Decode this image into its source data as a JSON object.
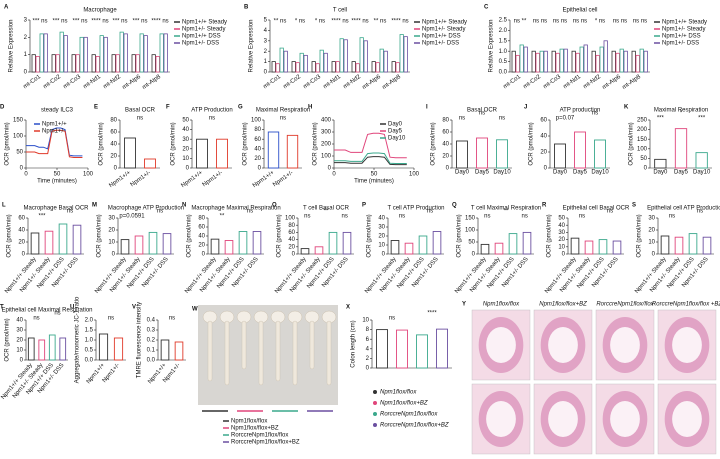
{
  "chart_data": [
    {
      "panel": "A",
      "type": "bar",
      "title": "Macrophage",
      "ylabel": "Relative Expression",
      "categories": [
        "mt-Co1",
        "mt-Co2",
        "mt-Co3",
        "mt-Nd1",
        "mt-Nd2",
        "mt-Atp6",
        "mt-Atp8"
      ],
      "series": [
        {
          "name": "Npm1+/+ Steady",
          "color": "#333333",
          "values": [
            1,
            1,
            1,
            1,
            1,
            1,
            1
          ]
        },
        {
          "name": "Npm1+/- Steady",
          "color": "#e0457b",
          "values": [
            0.9,
            1.0,
            1.0,
            0.9,
            1.0,
            1.0,
            0.9
          ]
        },
        {
          "name": "Npm1+/+ DSS",
          "color": "#3aa88c",
          "values": [
            2.2,
            2.3,
            2.0,
            2.1,
            2.3,
            2.2,
            2.2
          ]
        },
        {
          "name": "Npm1+/- DSS",
          "color": "#6b4fa0",
          "values": [
            2.2,
            2.1,
            2.0,
            2.0,
            2.2,
            2.1,
            2.2
          ]
        }
      ],
      "ylim": [
        0,
        3
      ],
      "yticks": [
        0,
        1,
        2,
        3
      ],
      "significance": [
        "*** ns",
        "*** ns",
        "*** ns",
        "**** ns",
        "*** ns",
        "*** ns",
        "**** ns"
      ]
    },
    {
      "panel": "B",
      "type": "bar",
      "title": "T cell",
      "ylabel": "Relative Expression",
      "categories": [
        "mt-Co1",
        "mt-Co2",
        "mt-Co3",
        "mt-Nd1",
        "mt-Nd2",
        "mt-Atp6",
        "mt-Atp8"
      ],
      "series": [
        {
          "name": "Npm1+/+ Steady",
          "color": "#333333",
          "values": [
            1,
            1,
            1,
            1,
            1,
            1,
            1
          ]
        },
        {
          "name": "Npm1+/- Steady",
          "color": "#e0457b",
          "values": [
            0.8,
            0.9,
            0.8,
            1.0,
            0.8,
            0.9,
            0.9
          ]
        },
        {
          "name": "Npm1+/+ DSS",
          "color": "#3aa88c",
          "values": [
            2.3,
            1.8,
            2.1,
            3.2,
            3.3,
            2.2,
            3.6
          ]
        },
        {
          "name": "Npm1+/- DSS",
          "color": "#6b4fa0",
          "values": [
            2.0,
            1.6,
            1.8,
            3.1,
            3.0,
            2.0,
            3.4
          ]
        }
      ],
      "ylim": [
        0,
        5
      ],
      "yticks": [
        0,
        1,
        2,
        3,
        4,
        5
      ],
      "significance": [
        "** ns",
        "* ns",
        "* ns",
        "**** ns",
        "**** ns",
        "** ns",
        "**** ns"
      ]
    },
    {
      "panel": "C",
      "type": "bar",
      "title": "Epithelial cell",
      "ylabel": "Relative Expression",
      "categories": [
        "mt-Co1",
        "mt-Co2",
        "mt-Co3",
        "mt-Nd1",
        "mt-Nd2",
        "mt-Atp6",
        "mt-Atp8"
      ],
      "series": [
        {
          "name": "Npm1+/+ Steady",
          "color": "#333333",
          "values": [
            1,
            1,
            1,
            1,
            1,
            1,
            1
          ]
        },
        {
          "name": "Npm1+/- Steady",
          "color": "#e0457b",
          "values": [
            0.8,
            0.9,
            0.9,
            0.9,
            0.8,
            0.9,
            0.8
          ]
        },
        {
          "name": "Npm1+/+ DSS",
          "color": "#3aa88c",
          "values": [
            1.3,
            1.0,
            1.1,
            1.2,
            1.2,
            1.1,
            1.1
          ]
        },
        {
          "name": "Npm1+/- DSS",
          "color": "#6b4fa0",
          "values": [
            1.2,
            1.0,
            1.1,
            1.3,
            1.5,
            1.0,
            1.0
          ]
        }
      ],
      "ylim": [
        0,
        2.5
      ],
      "yticks": [
        {
          "value": 0,
          "label": "0.0"
        },
        0.5,
        {
          "value": 1,
          "label": "1.0"
        },
        1.5,
        {
          "value": 2,
          "label": "2.0"
        },
        2.5
      ],
      "significance": [
        "ns **",
        "ns ns",
        "ns ns",
        "ns ns",
        "* ns",
        "ns ns",
        "ns ns"
      ]
    },
    {
      "panel": "D",
      "type": "line",
      "title": "steady ILC3",
      "ylabel": "OCR (pmol/min)",
      "xlabel": "Time (minutes)",
      "x": [
        0,
        7,
        14,
        21,
        28,
        35,
        42,
        49,
        56,
        63,
        70,
        77,
        84,
        91
      ],
      "series": [
        {
          "name": "Npm1+/+",
          "color": "#2b4fc9",
          "values": [
            70,
            70,
            70,
            65,
            65,
            60,
            120,
            125,
            125,
            120,
            40,
            38,
            38,
            38
          ]
        },
        {
          "name": "Npm1+/-",
          "color": "#e03a2a",
          "values": [
            50,
            50,
            50,
            45,
            45,
            45,
            115,
            118,
            118,
            115,
            35,
            33,
            33,
            33
          ]
        }
      ],
      "xlim": [
        0,
        100
      ],
      "xticks": [
        0,
        50,
        100
      ],
      "ylim": [
        0,
        150
      ],
      "yticks": [
        0,
        50,
        100,
        150
      ]
    },
    {
      "panel": "E",
      "type": "bar",
      "title": "Basal OCR",
      "ylabel": "OCR (pmol/min)",
      "categories": [
        "Npm1+/+",
        "Npm1+/-"
      ],
      "values": [
        50,
        15
      ],
      "colors": [
        "#333333",
        "#e03a2a"
      ],
      "ylim": [
        0,
        80
      ],
      "yticks": [
        0,
        20,
        40,
        60,
        80
      ],
      "significance": [
        "ns"
      ]
    },
    {
      "panel": "F",
      "type": "bar",
      "title": "ATP Production",
      "ylabel": "OCR (pmol/min)",
      "categories": [
        "Npm1+/+",
        "Npm1+/-"
      ],
      "values": [
        30,
        30
      ],
      "colors": [
        "#333333",
        "#e03a2a"
      ],
      "ylim": [
        0,
        50
      ],
      "yticks": [
        0,
        10,
        20,
        30,
        40,
        50
      ],
      "significance": [
        "ns"
      ]
    },
    {
      "panel": "G",
      "type": "bar",
      "title": "Maximal Respiration",
      "ylabel": "OCR (pmol/min)",
      "categories": [
        "Npm1+/+",
        "Npm1+/-"
      ],
      "values": [
        75,
        68
      ],
      "colors": [
        "#2b4fc9",
        "#e03a2a"
      ],
      "ylim": [
        0,
        100
      ],
      "yticks": [
        0,
        20,
        40,
        60,
        80,
        100
      ],
      "significance": [
        "ns"
      ]
    },
    {
      "panel": "H",
      "type": "line",
      "ylabel": "OCR (pmol/min)",
      "xlabel": "Time (minutes)",
      "x": [
        0,
        7,
        14,
        21,
        28,
        35,
        42,
        49,
        56,
        63,
        70,
        77,
        84,
        91
      ],
      "series": [
        {
          "name": "Day0",
          "color": "#333333",
          "values": [
            45,
            45,
            45,
            40,
            40,
            40,
            90,
            95,
            95,
            90,
            30,
            28,
            28,
            28
          ]
        },
        {
          "name": "Day5",
          "color": "#e0457b",
          "values": [
            150,
            150,
            150,
            130,
            130,
            130,
            280,
            290,
            290,
            280,
            90,
            85,
            85,
            85
          ]
        },
        {
          "name": "Day10",
          "color": "#3aa88c",
          "values": [
            60,
            60,
            60,
            55,
            55,
            55,
            120,
            125,
            125,
            120,
            40,
            38,
            38,
            38
          ]
        }
      ],
      "xlim": [
        0,
        100
      ],
      "xticks": [
        0,
        50,
        100
      ],
      "ylim": [
        0,
        400
      ],
      "yticks": [
        0,
        100,
        200,
        300,
        400
      ]
    },
    {
      "panel": "I",
      "type": "bar",
      "title": "Basal OCR",
      "ylabel": "OCR (pmol/min)",
      "categories": [
        "Day0",
        "Day5",
        "Day10"
      ],
      "values": [
        45,
        50,
        47
      ],
      "colors": [
        "#333333",
        "#e0457b",
        "#3aa88c"
      ],
      "ylim": [
        0,
        80
      ],
      "yticks": [
        0,
        20,
        40,
        60,
        80
      ],
      "significance": [
        "ns",
        "ns",
        "ns"
      ]
    },
    {
      "panel": "J",
      "type": "bar",
      "title": "ATP production",
      "ylabel": "OCR (pmol/min)",
      "categories": [
        "Day0",
        "Day5",
        "Day10"
      ],
      "values": [
        30,
        45,
        35
      ],
      "colors": [
        "#333333",
        "#e0457b",
        "#3aa88c"
      ],
      "ylim": [
        0,
        60
      ],
      "yticks": [
        0,
        20,
        40,
        60
      ],
      "significance": [
        "p=0.07",
        "ns"
      ]
    },
    {
      "panel": "K",
      "type": "bar",
      "title": "Maximal Respiration",
      "ylabel": "OCR (pmol/min)",
      "categories": [
        "Day0",
        "Day5",
        "Day10"
      ],
      "values": [
        45,
        205,
        80
      ],
      "colors": [
        "#333333",
        "#e0457b",
        "#3aa88c"
      ],
      "ylim": [
        0,
        250
      ],
      "yticks": [
        0,
        50,
        100,
        150,
        200,
        250
      ],
      "significance": [
        "***",
        "*",
        "***"
      ]
    },
    {
      "panel": "L",
      "type": "bar",
      "title": "Macrophage Basal OCR",
      "ylabel": "OCR (pmol/min)",
      "categories": [
        "Npm1+/+ Steady",
        "Npm1+/- Steady",
        "Npm1+/+ DSS",
        "Npm1+/- DSS"
      ],
      "values": [
        35,
        38,
        50,
        48
      ],
      "colors": [
        "#333333",
        "#e0457b",
        "#3aa88c",
        "#6b4fa0"
      ],
      "ylim": [
        0,
        60
      ],
      "yticks": [
        0,
        20,
        40,
        60
      ],
      "significance": [
        "***",
        "ns"
      ]
    },
    {
      "panel": "M",
      "type": "bar",
      "title": "Macrophage ATP Production",
      "ylabel": "OCR (pmol/min)",
      "categories": [
        "Npm1+/+ Steady",
        "Npm1+/- Steady",
        "Npm1+/+ DSS",
        "Npm1+/- DSS"
      ],
      "values": [
        12,
        15,
        18,
        17
      ],
      "colors": [
        "#333333",
        "#e0457b",
        "#3aa88c",
        "#6b4fa0"
      ],
      "ylim": [
        0,
        30
      ],
      "yticks": [
        0,
        10,
        20,
        30
      ],
      "significance": [
        "p=0.0591",
        "ns"
      ]
    },
    {
      "panel": "N",
      "type": "bar",
      "title": "Macrophage Maximal Respiration",
      "ylabel": "OCR (pmol/min)",
      "categories": [
        "Npm1+/+ Steady",
        "Npm1+/- Steady",
        "Npm1+/+ DSS",
        "Npm1+/- DSS"
      ],
      "values": [
        33,
        30,
        50,
        50
      ],
      "colors": [
        "#333333",
        "#e0457b",
        "#3aa88c",
        "#6b4fa0"
      ],
      "ylim": [
        0,
        80
      ],
      "yticks": [
        0,
        20,
        40,
        60,
        80
      ],
      "significance": [
        "**",
        "ns"
      ]
    },
    {
      "panel": "O",
      "type": "bar",
      "title": "T cell Basal OCR",
      "ylabel": "OCR (pmol/min)",
      "categories": [
        "Npm1+/+ Steady",
        "Npm1+/- Steady",
        "Npm1+/+ DSS",
        "Npm1+/- DSS"
      ],
      "values": [
        15,
        20,
        60,
        60
      ],
      "colors": [
        "#333333",
        "#e0457b",
        "#3aa88c",
        "#6b4fa0"
      ],
      "ylim": [
        0,
        100
      ],
      "yticks": [
        0,
        20,
        40,
        60,
        80,
        100
      ],
      "significance": [
        "ns",
        "**",
        "ns"
      ]
    },
    {
      "panel": "P",
      "type": "bar",
      "title": "T cell ATP Production",
      "ylabel": "OCR (pmol/min)",
      "categories": [
        "Npm1+/+ Steady",
        "Npm1+/- Steady",
        "Npm1+/+ DSS",
        "Npm1+/- DSS"
      ],
      "values": [
        15,
        12,
        20,
        25
      ],
      "colors": [
        "#333333",
        "#e0457b",
        "#3aa88c",
        "#6b4fa0"
      ],
      "ylim": [
        0,
        40
      ],
      "yticks": [
        0,
        10,
        20,
        30,
        40
      ],
      "significance": [
        "ns",
        "ns"
      ]
    },
    {
      "panel": "Q",
      "type": "bar",
      "title": "T cell Maximal Respiration",
      "ylabel": "OCR (pmol/min)",
      "categories": [
        "Npm1+/+ Steady",
        "Npm1+/- Steady",
        "Npm1+/+ DSS",
        "Npm1+/- DSS"
      ],
      "values": [
        40,
        45,
        85,
        90
      ],
      "colors": [
        "#333333",
        "#e0457b",
        "#3aa88c",
        "#6b4fa0"
      ],
      "ylim": [
        0,
        150
      ],
      "yticks": [
        0,
        50,
        100,
        150
      ],
      "significance": [
        "ns",
        "**",
        "ns"
      ]
    },
    {
      "panel": "R",
      "type": "bar",
      "title": "Epithelial cell Basal OCR",
      "ylabel": "OCR (pmol/min)",
      "categories": [
        "Npm1+/+ Steady",
        "Npm1+/- Steady",
        "Npm1+/+ DSS",
        "Npm1+/- DSS"
      ],
      "values": [
        22,
        18,
        20,
        18
      ],
      "colors": [
        "#333333",
        "#e0457b",
        "#3aa88c",
        "#6b4fa0"
      ],
      "ylim": [
        0,
        50
      ],
      "yticks": [
        0,
        10,
        20,
        30,
        40,
        50
      ],
      "significance": [
        "ns",
        "ns"
      ]
    },
    {
      "panel": "S",
      "type": "bar",
      "title": "Epithelial cell ATP Production",
      "ylabel": "OCR (pmol/min)",
      "categories": [
        "Npm1+/+ Steady",
        "Npm1+/- Steady",
        "Npm1+/+ DSS",
        "Npm1+/- DSS"
      ],
      "values": [
        15,
        14,
        17,
        14
      ],
      "colors": [
        "#333333",
        "#e0457b",
        "#3aa88c",
        "#6b4fa0"
      ],
      "ylim": [
        0,
        30
      ],
      "yticks": [
        0,
        10,
        20,
        30
      ],
      "significance": [
        "ns",
        "ns"
      ]
    },
    {
      "panel": "T",
      "type": "bar",
      "title": "Epithelial cell Maximal Respiration",
      "ylabel": "OCR (pmol/min)",
      "categories": [
        "Npm1+/+ Steady",
        "Npm1+/- Steady",
        "Npm1+/+ DSS",
        "Npm1+/- DSS"
      ],
      "values": [
        22,
        20,
        25,
        22
      ],
      "colors": [
        "#333333",
        "#e0457b",
        "#3aa88c",
        "#6b4fa0"
      ],
      "ylim": [
        0,
        40
      ],
      "yticks": [
        0,
        10,
        20,
        30,
        40
      ],
      "significance": [
        "ns",
        "ns"
      ]
    },
    {
      "panel": "U",
      "type": "bar",
      "ylabel": "Aggregate/monomeric JC-1 ratio",
      "categories": [
        "Npm1+/+",
        "Npm1+/-"
      ],
      "values": [
        1.3,
        1.1
      ],
      "colors": [
        "#333333",
        "#e03a2a"
      ],
      "ylim": [
        0,
        2
      ],
      "yticks": [
        {
          "value": 0,
          "label": "0.0"
        },
        0.5,
        {
          "value": 1,
          "label": "1.0"
        },
        1.5,
        {
          "value": 2,
          "label": "2.0"
        }
      ],
      "significance": [
        "ns"
      ]
    },
    {
      "panel": "V",
      "type": "bar",
      "ylabel": "TMRE fluorescence intensity",
      "categories": [
        "Npm1+/+",
        "Npm1+/-"
      ],
      "values": [
        0.2,
        0.18
      ],
      "colors": [
        "#333333",
        "#e03a2a"
      ],
      "ylim": [
        0,
        0.4
      ],
      "yticks": [
        {
          "value": 0,
          "label": "0.0"
        },
        0.1,
        0.2,
        0.3,
        0.4
      ],
      "significance": [
        "ns"
      ]
    },
    {
      "panel": "W",
      "type": "image",
      "legend": [
        "Npm1flox/flox",
        "Npm1flox/flox+BZ",
        "RorccreNpm1flox/flox",
        "RorccreNpm1flox/flox+BZ"
      ],
      "colors": [
        "#333333",
        "#e0457b",
        "#3aa88c",
        "#6b4fa0"
      ]
    },
    {
      "panel": "X",
      "type": "bar",
      "ylabel": "Colon length (cm)",
      "categories": [
        "Npm1flox/flox",
        "Npm1flox/flox+BZ",
        "RorccreNpm1flox/flox",
        "RorccreNpm1flox/flox+BZ"
      ],
      "values": [
        8,
        7.9,
        6.9,
        8.1
      ],
      "colors": [
        "#333333",
        "#e0457b",
        "#3aa88c",
        "#6b4fa0"
      ],
      "ylim": [
        0,
        10
      ],
      "yticks": [
        0,
        2,
        4,
        6,
        8,
        10
      ],
      "significance": [
        "ns",
        "****"
      ]
    },
    {
      "panel": "Y",
      "type": "histology",
      "columns": [
        "Npm1flox/flox",
        "Npm1flox/flox+BZ",
        "RorccreNpm1flox/flox",
        "RorccreNpm1flox/flox +BZ"
      ]
    }
  ]
}
